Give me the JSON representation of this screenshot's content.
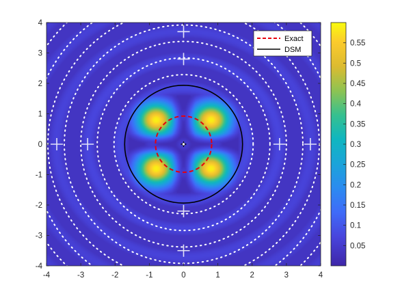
{
  "chart_data": {
    "type": "heatmap",
    "title": "",
    "xlabel": "",
    "ylabel": "",
    "xlim": [
      -4,
      4
    ],
    "ylim": [
      -4,
      4
    ],
    "x_ticks": [
      "-4",
      "-3",
      "-2",
      "-1",
      "0",
      "1",
      "2",
      "3",
      "4"
    ],
    "y_ticks": [
      "4",
      "3",
      "2",
      "1",
      "0",
      "-1",
      "-2",
      "-3",
      "-4"
    ],
    "x_tick_values": [
      -4,
      -3,
      -2,
      -1,
      0,
      1,
      2,
      3,
      4
    ],
    "y_tick_values": [
      4,
      3,
      2,
      1,
      0,
      -1,
      -2,
      -3,
      -4
    ],
    "colormap": "parula",
    "colorbar": {
      "range": [
        0,
        0.6
      ],
      "ticks": [
        "0.55",
        "0.5",
        "0.45",
        "0.4",
        "0.35",
        "0.3",
        "0.25",
        "0.2",
        "0.15",
        "0.1",
        "0.05"
      ],
      "tick_values": [
        0.55,
        0.5,
        0.45,
        0.4,
        0.35,
        0.3,
        0.25,
        0.2,
        0.15,
        0.1,
        0.05
      ]
    },
    "peaks": [
      {
        "x": -0.8,
        "y": 0.8,
        "value": 0.59
      },
      {
        "x": 0.8,
        "y": 0.8,
        "value": 0.59
      },
      {
        "x": -0.8,
        "y": -0.8,
        "value": 0.59
      },
      {
        "x": 0.8,
        "y": -0.8,
        "value": 0.59
      }
    ],
    "series": [
      {
        "name": "Exact",
        "shape": "circle",
        "center": [
          0,
          0
        ],
        "radius": 0.82,
        "color": "#e8000b",
        "style": "dashed"
      },
      {
        "name": "DSM",
        "shape": "circle",
        "center": [
          0,
          0
        ],
        "radius": 1.72,
        "color": "#000000",
        "style": "solid"
      }
    ],
    "marker": {
      "x": 0,
      "y": 0,
      "symbol": "plus"
    },
    "legend": {
      "position": "top-right",
      "entries": [
        "Exact",
        "DSM"
      ]
    },
    "grid": false
  }
}
